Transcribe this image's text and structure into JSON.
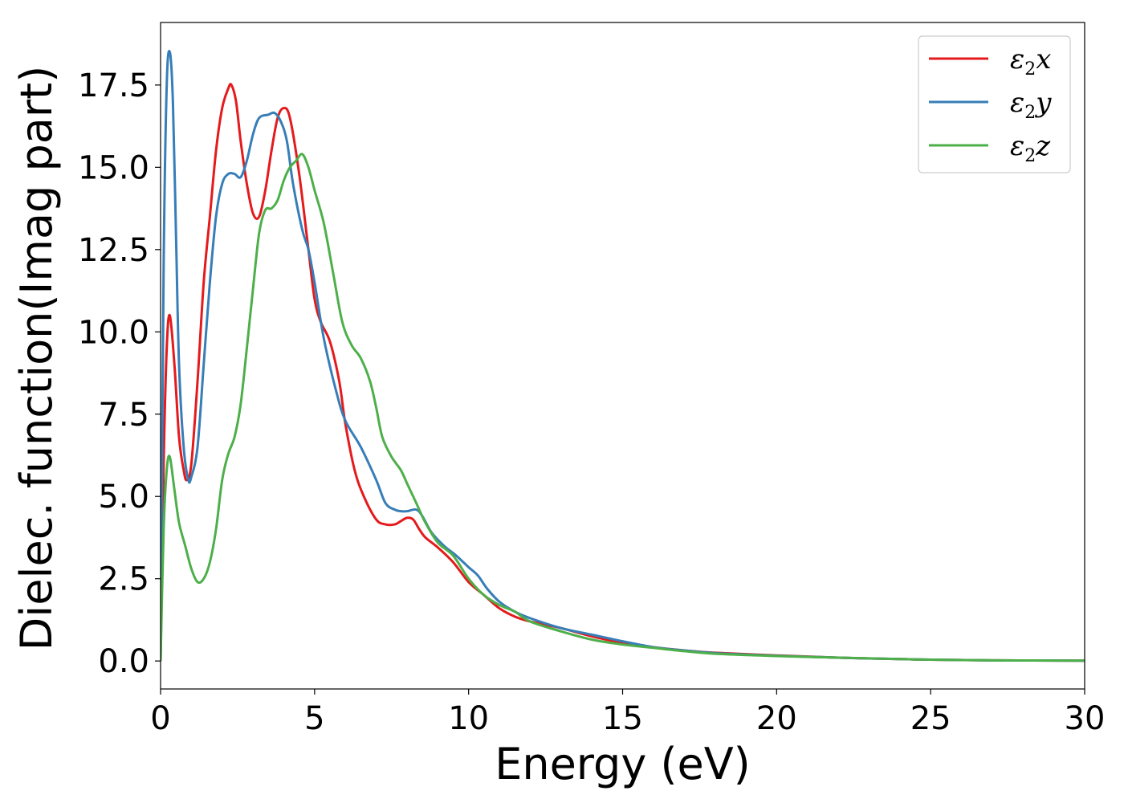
{
  "chart_data": {
    "type": "line",
    "xlabel": "Energy (eV)",
    "ylabel": "Dielec. function(Imag part)",
    "xlim": [
      0,
      30
    ],
    "ylim": [
      -0.85,
      19.4
    ],
    "xticks": [
      0,
      5,
      10,
      15,
      20,
      25,
      30
    ],
    "xtick_labels": [
      "0",
      "5",
      "10",
      "15",
      "20",
      "25",
      "30"
    ],
    "yticks": [
      0.0,
      2.5,
      5.0,
      7.5,
      10.0,
      12.5,
      15.0,
      17.5
    ],
    "ytick_labels": [
      "0.0",
      "2.5",
      "5.0",
      "7.5",
      "10.0",
      "12.5",
      "15.0",
      "17.5"
    ],
    "grid": false,
    "legend_position": "top-right",
    "series": [
      {
        "name": "ε2x",
        "color": "#e41a1c",
        "x": [
          0,
          0.1,
          0.2,
          0.3,
          0.45,
          0.6,
          0.75,
          0.85,
          1.0,
          1.2,
          1.4,
          1.6,
          1.8,
          2.0,
          2.2,
          2.3,
          2.45,
          2.6,
          2.8,
          3.0,
          3.2,
          3.4,
          3.6,
          3.8,
          4.0,
          4.2,
          4.5,
          4.8,
          5.0,
          5.2,
          5.5,
          5.8,
          6.0,
          6.3,
          6.6,
          7.0,
          7.3,
          7.6,
          7.8,
          8.0,
          8.2,
          8.4,
          8.6,
          9.0,
          9.5,
          10.0,
          10.5,
          11.0,
          11.5,
          12.0,
          13.0,
          14.0,
          15.0,
          16.0,
          17.0,
          18.0,
          20.0,
          22.0,
          24.0,
          25.0,
          27.0,
          30.0
        ],
        "values": [
          0.0,
          6.0,
          9.5,
          10.5,
          9.0,
          6.8,
          5.8,
          5.5,
          6.0,
          8.5,
          11.5,
          13.5,
          15.5,
          16.8,
          17.4,
          17.5,
          17.0,
          15.8,
          14.5,
          13.6,
          13.5,
          14.3,
          15.5,
          16.5,
          16.8,
          16.5,
          14.8,
          12.5,
          11.0,
          10.3,
          9.7,
          8.5,
          7.2,
          5.8,
          5.0,
          4.3,
          4.15,
          4.15,
          4.25,
          4.35,
          4.3,
          4.0,
          3.75,
          3.45,
          3.0,
          2.4,
          2.0,
          1.6,
          1.35,
          1.2,
          1.0,
          0.75,
          0.55,
          0.42,
          0.32,
          0.25,
          0.17,
          0.1,
          0.06,
          0.04,
          0.02,
          0.01
        ]
      },
      {
        "name": "ε2y",
        "color": "#377eb8",
        "x": [
          0,
          0.1,
          0.2,
          0.3,
          0.4,
          0.5,
          0.6,
          0.75,
          0.9,
          1.0,
          1.2,
          1.4,
          1.6,
          1.8,
          2.0,
          2.2,
          2.4,
          2.6,
          2.8,
          3.0,
          3.2,
          3.5,
          3.7,
          3.9,
          4.1,
          4.3,
          4.6,
          4.8,
          5.0,
          5.3,
          5.7,
          6.0,
          6.5,
          7.0,
          7.3,
          7.6,
          7.8,
          8.0,
          8.3,
          8.5,
          8.8,
          9.2,
          9.6,
          10.0,
          10.3,
          10.6,
          11.0,
          11.5,
          12.0,
          13.0,
          14.0,
          15.0,
          16.0,
          17.0,
          18.0,
          20.0,
          22.0,
          24.0,
          25.0,
          27.0,
          30.0
        ],
        "values": [
          0.0,
          12.0,
          17.5,
          18.5,
          17.0,
          13.0,
          9.0,
          6.5,
          5.5,
          5.6,
          6.5,
          9.0,
          11.5,
          13.5,
          14.5,
          14.8,
          14.8,
          14.7,
          15.2,
          16.0,
          16.5,
          16.6,
          16.65,
          16.4,
          15.8,
          14.5,
          13.1,
          12.5,
          11.5,
          9.8,
          8.2,
          7.3,
          6.5,
          5.5,
          4.8,
          4.6,
          4.55,
          4.55,
          4.6,
          4.4,
          3.9,
          3.5,
          3.2,
          2.85,
          2.6,
          2.2,
          1.8,
          1.5,
          1.3,
          1.0,
          0.8,
          0.6,
          0.42,
          0.32,
          0.24,
          0.16,
          0.1,
          0.06,
          0.04,
          0.02,
          0.01
        ]
      },
      {
        "name": "ε2z",
        "color": "#4daf4a",
        "x": [
          0,
          0.1,
          0.2,
          0.3,
          0.45,
          0.6,
          0.8,
          1.0,
          1.2,
          1.4,
          1.6,
          1.8,
          2.0,
          2.2,
          2.4,
          2.6,
          2.8,
          3.0,
          3.2,
          3.4,
          3.6,
          3.8,
          4.0,
          4.2,
          4.4,
          4.6,
          4.8,
          5.0,
          5.3,
          5.6,
          5.9,
          6.2,
          6.5,
          6.8,
          7.0,
          7.2,
          7.5,
          7.8,
          8.0,
          8.3,
          8.6,
          9.0,
          9.5,
          10.0,
          10.5,
          11.0,
          11.5,
          12.0,
          13.0,
          14.0,
          15.0,
          16.0,
          17.0,
          18.0,
          20.0,
          22.0,
          24.0,
          25.0,
          27.0,
          30.0
        ],
        "values": [
          0.0,
          4.0,
          5.8,
          6.2,
          5.2,
          4.2,
          3.5,
          2.8,
          2.4,
          2.5,
          3.0,
          4.0,
          5.5,
          6.3,
          6.8,
          7.8,
          9.5,
          11.3,
          13.0,
          13.7,
          13.75,
          14.0,
          14.6,
          15.0,
          15.2,
          15.4,
          15.0,
          14.3,
          13.3,
          11.8,
          10.3,
          9.6,
          9.2,
          8.5,
          7.7,
          6.8,
          6.2,
          5.8,
          5.4,
          4.8,
          4.2,
          3.6,
          3.2,
          2.5,
          2.0,
          1.7,
          1.5,
          1.2,
          0.9,
          0.65,
          0.5,
          0.4,
          0.3,
          0.22,
          0.15,
          0.1,
          0.06,
          0.04,
          0.02,
          0.01
        ]
      }
    ]
  }
}
